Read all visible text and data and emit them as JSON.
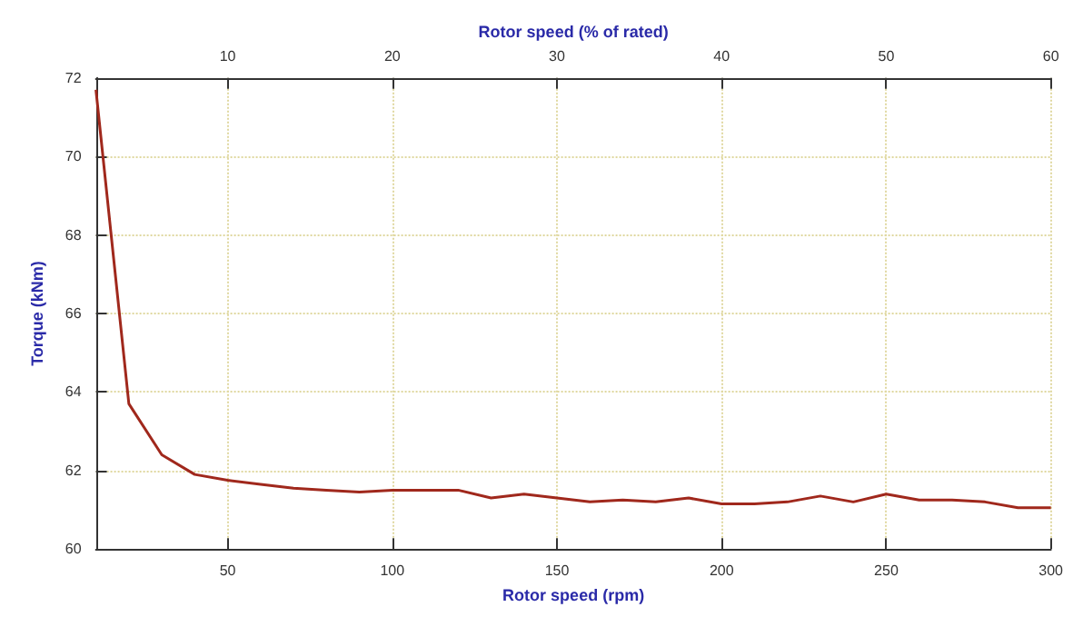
{
  "chart_data": {
    "type": "line",
    "xlabel": "Rotor speed (rpm)",
    "x2label": "Rotor speed (% of rated)",
    "ylabel": "Torque (kNm)",
    "x": [
      10,
      20,
      30,
      40,
      50,
      60,
      70,
      80,
      90,
      100,
      110,
      120,
      130,
      140,
      150,
      160,
      170,
      180,
      190,
      200,
      210,
      220,
      230,
      240,
      250,
      260,
      270,
      280,
      290,
      300
    ],
    "series": [
      {
        "color": "#a0281c",
        "values": [
          71.7,
          63.7,
          62.4,
          61.9,
          61.75,
          61.65,
          61.55,
          61.5,
          61.45,
          61.5,
          61.5,
          61.5,
          61.3,
          61.4,
          61.3,
          61.2,
          61.25,
          61.2,
          61.3,
          61.15,
          61.15,
          61.2,
          61.35,
          61.2,
          61.4,
          61.25,
          61.25,
          61.2,
          61.05,
          61.05
        ]
      }
    ],
    "xlim": [
      10,
      300
    ],
    "xticks": [
      50,
      100,
      150,
      200,
      250,
      300
    ],
    "x2lim": [
      2,
      60
    ],
    "x2ticks": [
      10,
      20,
      30,
      40,
      50,
      60
    ],
    "ylim": [
      60,
      72
    ],
    "yticks": [
      60,
      62,
      64,
      66,
      68,
      70,
      72
    ],
    "grid": true,
    "marker": "none",
    "line_style": "solid"
  }
}
